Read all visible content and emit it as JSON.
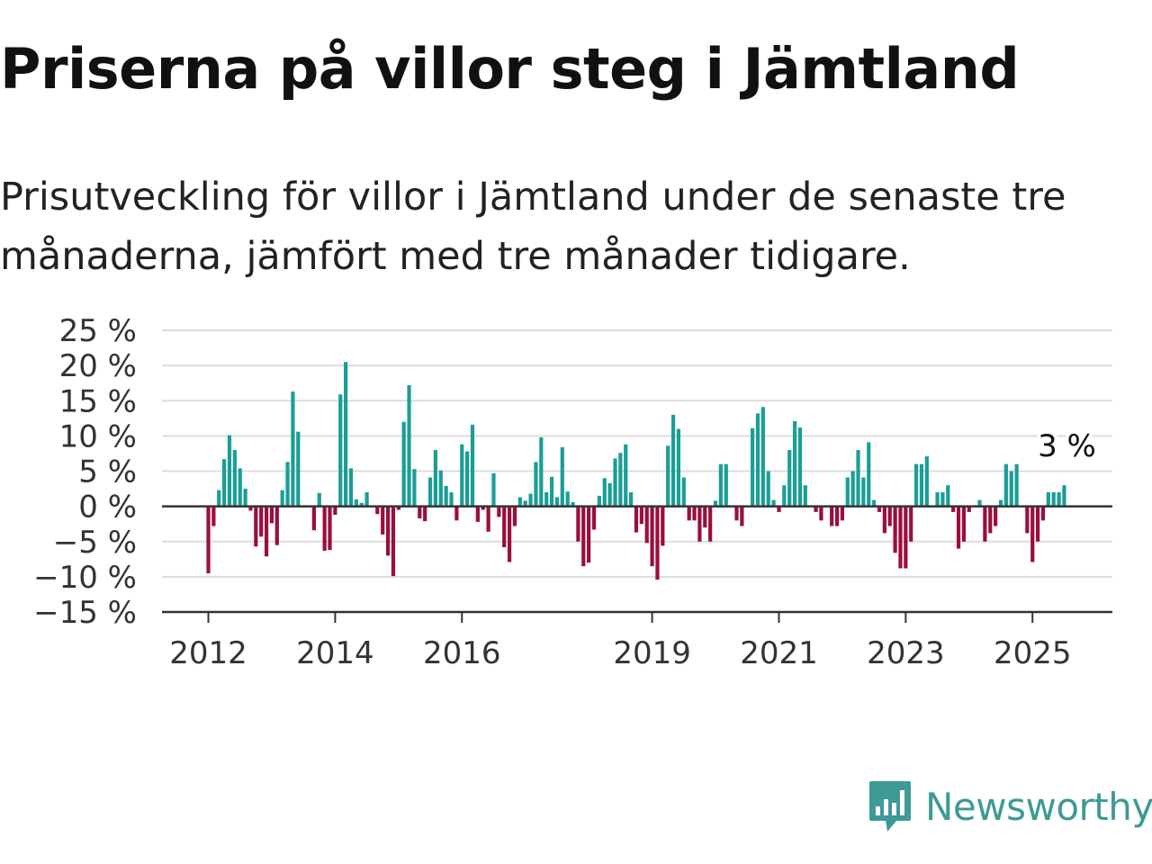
{
  "header": {
    "title": "Priserna på villor steg i Jämtland",
    "subtitle": "Prisutveckling för villor i Jämtland under de senaste tre månaderna, jämfört med tre månader tidigare."
  },
  "brand": {
    "name": "Newsworthy",
    "icon": "newsworthy-chart-bubble-icon",
    "color": "#3d9a95"
  },
  "colors": {
    "positive": "#1a9e96",
    "negative": "#9b0e3e",
    "grid": "#dddddd",
    "axis": "#333333"
  },
  "chart_data": {
    "type": "bar",
    "start": "2012-01",
    "ylim": [
      -15,
      25
    ],
    "yticks": [
      {
        "value": 25,
        "label": "25 %"
      },
      {
        "value": 20,
        "label": "20 %"
      },
      {
        "value": 15,
        "label": "15 %"
      },
      {
        "value": 10,
        "label": "10 %"
      },
      {
        "value": 5,
        "label": "5 %"
      },
      {
        "value": 0,
        "label": "0 %"
      },
      {
        "value": -5,
        "label": "−5 %"
      },
      {
        "value": -10,
        "label": "−10 %"
      },
      {
        "value": -15,
        "label": "−15 %"
      }
    ],
    "xticks": [
      {
        "month": "2012-01",
        "label": "2012"
      },
      {
        "month": "2014-01",
        "label": "2014"
      },
      {
        "month": "2016-01",
        "label": "2016"
      },
      {
        "month": "2019-01",
        "label": "2019"
      },
      {
        "month": "2021-01",
        "label": "2021"
      },
      {
        "month": "2023-01",
        "label": "2023"
      },
      {
        "month": "2025-01",
        "label": "2025"
      }
    ],
    "last_value_label": "3 %",
    "values": [
      -9.5,
      -2.8,
      2.3,
      6.7,
      10.1,
      8.0,
      5.4,
      2.5,
      -0.6,
      -5.7,
      -4.3,
      -7.1,
      -2.4,
      -5.5,
      2.3,
      6.3,
      16.3,
      10.6,
      0,
      0,
      -3.4,
      1.9,
      -6.3,
      -6.2,
      -1.2,
      15.9,
      20.5,
      5.4,
      1.0,
      0.5,
      2.0,
      0,
      -1.1,
      -4.0,
      -7.0,
      -9.9,
      -0.5,
      12.0,
      17.2,
      5.3,
      -1.7,
      -2.1,
      4.1,
      8.0,
      5.1,
      2.9,
      2.0,
      -2.0,
      8.8,
      7.8,
      11.6,
      -2.2,
      -0.5,
      -3.6,
      4.7,
      -1.5,
      -5.8,
      -7.9,
      -2.8,
      1.3,
      0.8,
      1.8,
      6.3,
      9.8,
      2.0,
      4.2,
      1.3,
      8.4,
      2.1,
      0.6,
      -5.0,
      -8.5,
      -8.0,
      -3.3,
      1.5,
      4.0,
      3.3,
      6.8,
      7.6,
      8.8,
      2.0,
      -3.7,
      -2.5,
      -5.2,
      -8.5,
      -10.4,
      -5.6,
      8.6,
      13.0,
      11.0,
      4.1,
      -2.0,
      -2.0,
      -5.0,
      -3.0,
      -5.0,
      0.8,
      6.0,
      6.0,
      0,
      -2.0,
      -2.8,
      0,
      11.1,
      13.2,
      14.1,
      5.0,
      0.9,
      -0.8,
      3.0,
      8.0,
      12.1,
      11.2,
      3.0,
      0,
      -0.8,
      -2.0,
      0,
      -2.8,
      -2.8,
      -2.0,
      4.1,
      5.0,
      8.0,
      4.1,
      9.1,
      0.9,
      -0.8,
      -3.8,
      -2.8,
      -6.6,
      -8.8,
      -8.8,
      -5.0,
      6.0,
      6.0,
      7.1,
      0,
      2.0,
      2.0,
      3.0,
      -0.8,
      -6.0,
      -5.0,
      -0.8,
      0,
      0.9,
      -5.0,
      -3.8,
      -2.8,
      0.9,
      6.0,
      5.0,
      6.0,
      0,
      -3.8,
      -7.9,
      -5.0,
      -2.0,
      2.0,
      2.0,
      2.0,
      3.0
    ]
  }
}
